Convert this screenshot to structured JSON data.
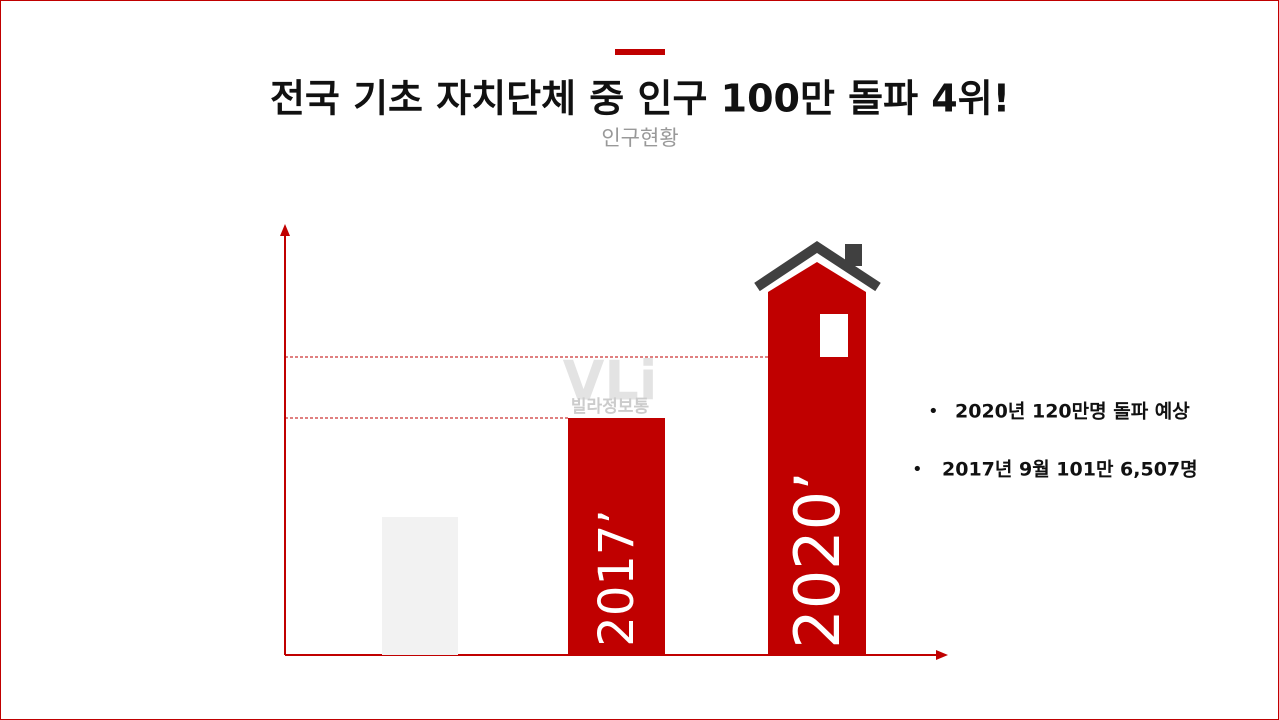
{
  "header": {
    "title": "전국 기초 자치단체 중 인구 100만 돌파 4위!",
    "subtitle": "인구현황"
  },
  "bars": [
    {
      "label": "2017’"
    },
    {
      "label": "2020’"
    }
  ],
  "watermark": "빌라정보통",
  "bullets": [
    "2020년 120만명 돌파 예상",
    "2017년 9월 101만 6,507명"
  ]
}
